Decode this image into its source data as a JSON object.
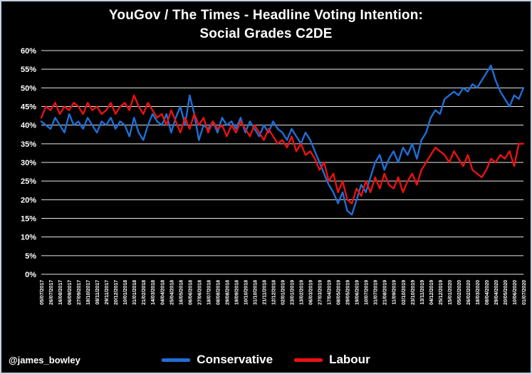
{
  "title": {
    "line1": "YouGov / The Times - Headline Voting Intention:",
    "line2": "Social Grades C2DE"
  },
  "watermark": "@james_bowley",
  "legend": [
    {
      "label": "Conservative",
      "color": "#1e6fd6"
    },
    {
      "label": "Labour",
      "color": "#ea1212"
    }
  ],
  "colors": {
    "background": "#000000",
    "text": "#ffffff",
    "grid": "#e8e8e8",
    "conservative": "#1e6fd6",
    "labour": "#ea1212"
  },
  "chart_data": {
    "type": "line",
    "title": "YouGov / The Times - Headline Voting Intention: Social Grades C2DE",
    "xlabel": "",
    "ylabel": "",
    "ylim": [
      0,
      60
    ],
    "ytick_step": 5,
    "ytick_format": "percent",
    "grid": true,
    "legend_position": "bottom",
    "x_labels": [
      "05/07/2017",
      "26/07/2017",
      "16/08/2017",
      "06/09/2017",
      "27/09/2017",
      "18/10/2017",
      "08/11/2017",
      "29/11/2017",
      "20/12/2017",
      "10/01/2018",
      "31/01/2018",
      "21/02/2018",
      "14/03/2018",
      "04/04/2018",
      "25/04/2018",
      "16/05/2018",
      "06/06/2018",
      "27/06/2018",
      "18/07/2018",
      "08/08/2018",
      "29/08/2018",
      "19/09/2018",
      "10/10/2018",
      "31/10/2018",
      "21/11/2018",
      "12/12/2018",
      "02/01/2019",
      "23/01/2019",
      "13/02/2019",
      "06/03/2019",
      "27/03/2019",
      "17/04/2019",
      "08/05/2019",
      "29/05/2019",
      "19/06/2019",
      "10/07/2019",
      "31/07/2019",
      "21/08/2019",
      "11/09/2019",
      "02/10/2019",
      "23/10/2019",
      "13/11/2019",
      "04/12/2019",
      "25/12/2019",
      "15/01/2020",
      "05/02/2020",
      "26/02/2020",
      "18/03/2020",
      "08/04/2020",
      "29/04/2020",
      "20/05/2020",
      "10/06/2020",
      "01/07/2020"
    ],
    "values_evenly_spaced_over_x_labels": true,
    "series": [
      {
        "name": "Conservative",
        "color": "#1e6fd6",
        "values": [
          41,
          40,
          39,
          42,
          40,
          38,
          43,
          40,
          41,
          39,
          42,
          40,
          38,
          41,
          40,
          42,
          39,
          41,
          40,
          37,
          42,
          38,
          36,
          40,
          43,
          41,
          40,
          43,
          38,
          42,
          45,
          40,
          48,
          43,
          36,
          40,
          39,
          41,
          38,
          42,
          40,
          41,
          39,
          42,
          38,
          41,
          39,
          37,
          40,
          38,
          41,
          39,
          38,
          36,
          39,
          37,
          35,
          38,
          36,
          33,
          30,
          27,
          24,
          22,
          19,
          22,
          17,
          16,
          20,
          24,
          22,
          26,
          30,
          32,
          28,
          31,
          33,
          30,
          34,
          32,
          35,
          31,
          36,
          38,
          42,
          44,
          43,
          47,
          48,
          49,
          48,
          50,
          49,
          51,
          50,
          52,
          54,
          56,
          52,
          49,
          47,
          45,
          48,
          47,
          50
        ]
      },
      {
        "name": "Labour",
        "color": "#ea1212",
        "values": [
          42,
          45,
          44,
          46,
          43,
          45,
          44,
          46,
          45,
          43,
          46,
          44,
          45,
          43,
          44,
          46,
          43,
          45,
          46,
          44,
          48,
          45,
          43,
          46,
          44,
          42,
          43,
          40,
          44,
          41,
          38,
          42,
          39,
          43,
          40,
          42,
          38,
          41,
          39,
          40,
          37,
          40,
          38,
          41,
          39,
          37,
          40,
          38,
          36,
          39,
          37,
          35,
          36,
          34,
          37,
          33,
          35,
          32,
          33,
          31,
          28,
          30,
          25,
          27,
          22,
          25,
          20,
          19,
          23,
          21,
          25,
          22,
          26,
          23,
          27,
          24,
          23,
          26,
          22,
          25,
          27,
          24,
          28,
          30,
          32,
          34,
          33,
          32,
          30,
          33,
          31,
          29,
          32,
          28,
          27,
          26,
          28,
          31,
          30,
          32,
          31,
          33,
          29,
          35,
          35
        ]
      }
    ]
  }
}
